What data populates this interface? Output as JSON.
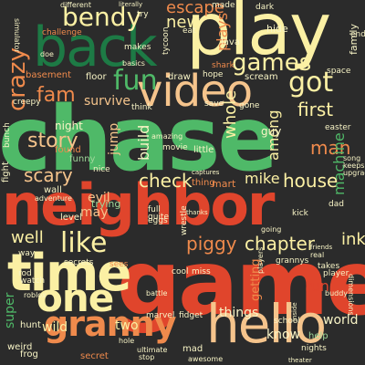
{
  "colors": {
    "background": "#2b2b2b",
    "green": "#4fb968",
    "dark_green": "#1d7a45",
    "red": "#e0452c",
    "orange": "#ef8a4c",
    "peach": "#f5c48c",
    "yellow": "#fbf0a4",
    "pale": "#f8f4c6",
    "light_green": "#9fd79a"
  },
  "words": {
    "chase": "chase",
    "game": "game",
    "neighbor": "neighbor",
    "play": "play",
    "back": "back",
    "time": "time",
    "hello": "hello",
    "video": "video",
    "one": "one",
    "granny": "granny",
    "bendy": "bendy",
    "fun": "fun",
    "games": "games",
    "got": "got",
    "like": "like",
    "crazy": "crazy",
    "piggy": "piggy",
    "chapter": "chapter",
    "fam": "fam",
    "story": "story",
    "scary": "scary",
    "check": "check",
    "house": "house",
    "first": "first",
    "escape": "escape",
    "new": "new",
    "man": "man",
    "mike": "mike",
    "well": "well",
    "ink": "ink",
    "whole": "whole",
    "build": "build",
    "among": "among",
    "machine": "machine",
    "plays": "plays",
    "survive": "survive",
    "jump": "jump",
    "evil": "evil",
    "may": "may",
    "wild": "wild",
    "super": "super",
    "two": "two",
    "run": "run",
    "know": "know",
    "world": "world",
    "things": "things",
    "getting": "getting",
    "hunt": "hunt",
    "frog": "frog",
    "secret": "secret",
    "weird": "weird",
    "help": "help",
    "trying": "trying",
    "level": "level",
    "night": "night",
    "funny": "funny",
    "found": "found",
    "guy": "guy",
    "hide": "hide",
    "family": "family",
    "draw": "draw",
    "floor": "floor",
    "basement": "basement",
    "challenge": "challenge",
    "tycoon": "tycoon",
    "lava": "lava",
    "scream": "scream",
    "movie": "movie",
    "little": "little",
    "mart": "mart",
    "thing": "thing",
    "fight": "fight",
    "wall": "wall",
    "secrets": "secrets",
    "rod": "rod",
    "watch": "watch",
    "sees": "sees",
    "eggs": "eggs",
    "miss": "miss",
    "cool": "cool",
    "marvel": "marvel",
    "fidget": "fidget",
    "mad": "mad",
    "awesome": "awesome",
    "grannys": "grannys",
    "player": "player",
    "takes": "takes",
    "dad": "dad",
    "kick": "kick",
    "dimensions": "dimensions",
    "nights": "nights",
    "school": "school",
    "bunch": "bunch",
    "creepy": "creepy",
    "save": "save",
    "full": "full",
    "quite": "quite",
    "dark": "dark",
    "hope": "hope",
    "easter": "easter",
    "eat": "eat",
    "try": "try",
    "made": "made",
    "makes": "makes",
    "shark": "shark",
    "space": "space",
    "think": "think",
    "basics": "basics",
    "song": "song",
    "keeps": "keeps",
    "upgrades": "upgrades",
    "nice": "nice",
    "captures": "captures",
    "gone": "gone",
    "battle": "battle",
    "wrestle": "wrestle",
    "theater": "theater",
    "stop": "stop",
    "ultimate": "ultimate",
    "adventure": "adventure",
    "simulator": "simulator",
    "different": "different",
    "literally": "literally",
    "thanks": "thanks",
    "going": "going",
    "roblox": "roblox",
    "amazing": "amazing",
    "end": "end",
    "way": "way",
    "hole": "hole",
    "buddy": "buddy",
    "inside": "inside",
    "doe": "doe",
    "real": "real",
    "friends": "friends",
    "players": "players"
  }
}
